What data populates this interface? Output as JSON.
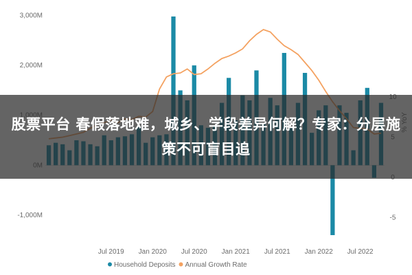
{
  "headline": "股票平台 春假落地难，城乡、学段差异何解？专家：分层施策不可盲目追",
  "chart_data": {
    "type": "bar",
    "categories": [
      "2018-10",
      "2018-11",
      "2018-12",
      "2019-01",
      "2019-02",
      "2019-03",
      "2019-04",
      "2019-05",
      "2019-06",
      "2019-07",
      "2019-08",
      "2019-09",
      "2019-10",
      "2019-11",
      "2019-12",
      "2020-01",
      "2020-02",
      "2020-03",
      "2020-04",
      "2020-05",
      "2020-06",
      "2020-07",
      "2020-08",
      "2020-09",
      "2020-10",
      "2020-11",
      "2020-12",
      "2021-01",
      "2021-02",
      "2021-03",
      "2021-04",
      "2021-05",
      "2021-06",
      "2021-07",
      "2021-08",
      "2021-09",
      "2021-10",
      "2021-11",
      "2021-12",
      "2022-01",
      "2022-02",
      "2022-03",
      "2022-04",
      "2022-05",
      "2022-06",
      "2022-07",
      "2022-08",
      "2022-09",
      "2022-10"
    ],
    "x_tick_labels": [
      "Jul 2019",
      "Jan 2020",
      "Jul 2020",
      "Jan 2021",
      "Jul 2021",
      "Jan 2022",
      "Jul 2022"
    ],
    "series": [
      {
        "name": "Household Deposits",
        "type": "bar",
        "axis": "left",
        "color": "#1b8aa6",
        "values": [
          400,
          450,
          420,
          300,
          500,
          480,
          420,
          380,
          600,
          500,
          560,
          580,
          620,
          780,
          450,
          560,
          600,
          620,
          2980,
          1500,
          1300,
          2000,
          800,
          750,
          800,
          1250,
          1750,
          900,
          1400,
          1300,
          1900,
          850,
          1350,
          1200,
          2250,
          750,
          1250,
          1850,
          650,
          1100,
          1200,
          -1400,
          1200,
          1050,
          300,
          1300,
          1550,
          -250,
          1250
        ]
      },
      {
        "name": "Annual Growth Rate",
        "type": "line",
        "axis": "right",
        "color": "#f4a261",
        "values": [
          4.8,
          4.9,
          5.0,
          5.2,
          5.4,
          5.6,
          6.1,
          6.6,
          6.8,
          7.1,
          6.8,
          7.3,
          7.2,
          7.6,
          7.5,
          8.2,
          11.0,
          12.5,
          12.9,
          13.0,
          13.5,
          12.8,
          12.9,
          13.5,
          14.2,
          14.8,
          15.1,
          15.5,
          16.0,
          17.0,
          17.8,
          18.4,
          18.1,
          17.2,
          16.4,
          15.9,
          15.3,
          14.3,
          13.3,
          12.1,
          10.7,
          9.4,
          8.3,
          7.3,
          6.2,
          6.1,
          6.0,
          5.4,
          5.5
        ]
      }
    ],
    "y_left": {
      "range": [
        -1400,
        3200
      ],
      "tick_values": [
        -1000,
        0,
        1000,
        2000,
        3000
      ],
      "tick_labels": [
        "-1,000M",
        "0M",
        "1,000M",
        "2,000M",
        "3,000M"
      ]
    },
    "y_right": {
      "range": [
        -7.2,
        21.4
      ],
      "tick_values": [
        -5,
        0,
        5,
        10
      ],
      "tick_labels": [
        "-5",
        "0",
        "5",
        "10"
      ],
      "label": "% YoY"
    },
    "legend": [
      "Household Deposits",
      "Annual Growth Rate"
    ],
    "legend_position": "bottom",
    "grid": false
  }
}
